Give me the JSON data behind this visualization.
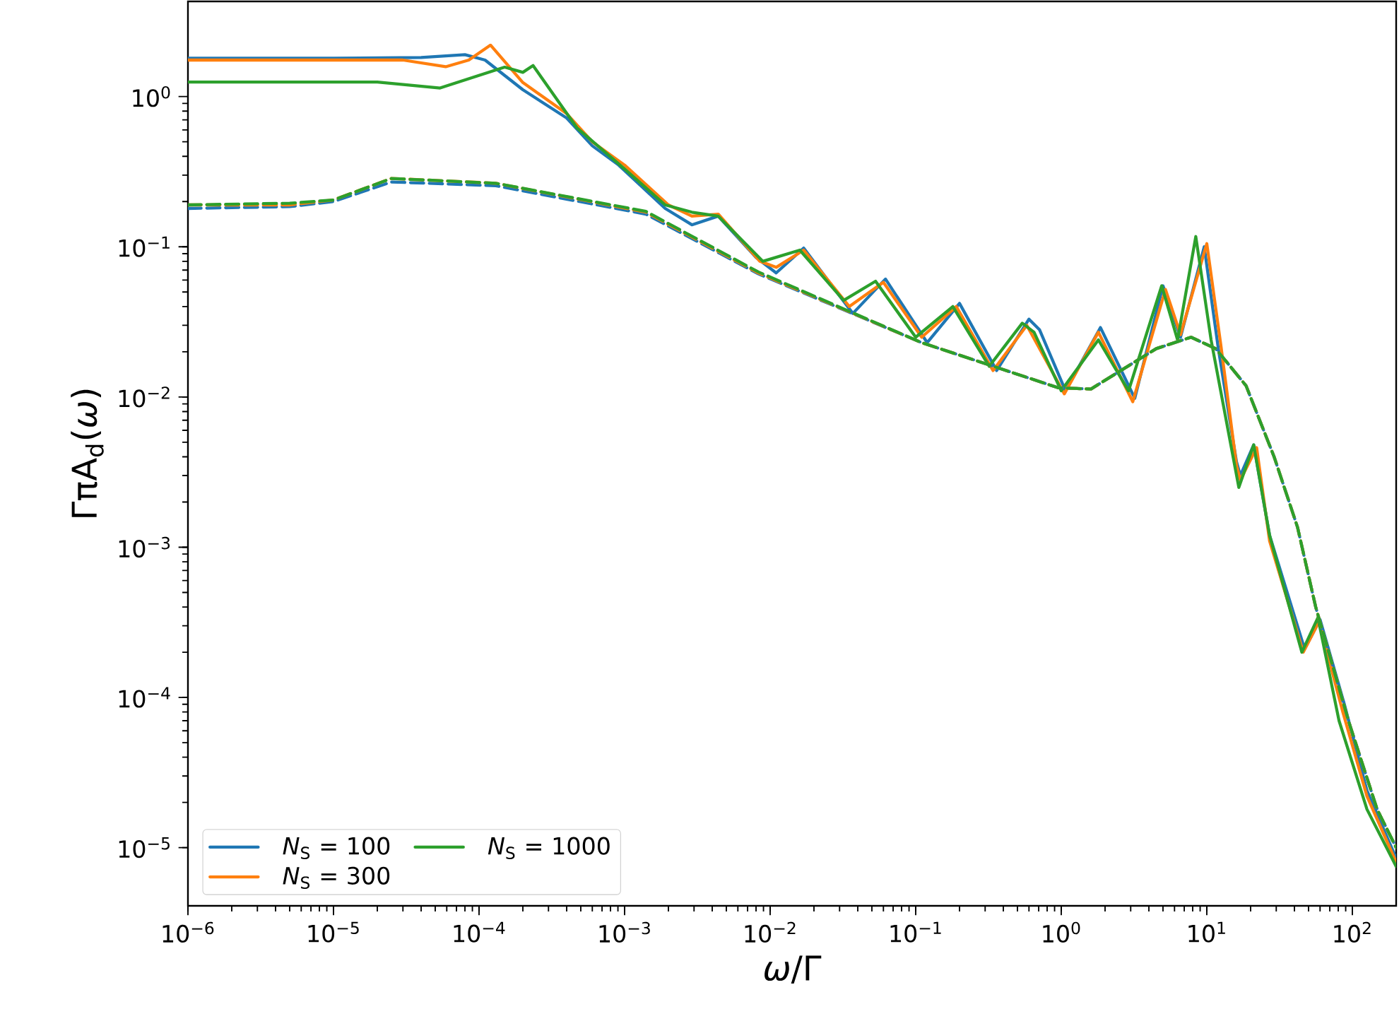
{
  "chart_data": {
    "type": "line",
    "xlabel": "*ω*/Γ",
    "ylabel": "ΓπA$_{d}$(*ω*)",
    "log": "xy",
    "legend": "bottom left",
    "xlim": [
      1e-06,
      200
    ],
    "ylim": [
      4.1e-06,
      4.3
    ],
    "xticks": [
      {
        "value": 1e-06,
        "label": "10$^{−6}$"
      },
      {
        "value": 1e-05,
        "label": "10$^{−5}$"
      },
      {
        "value": 0.0001,
        "label": "10$^{−4}$"
      },
      {
        "value": 0.001,
        "label": "10$^{−3}$"
      },
      {
        "value": 0.01,
        "label": "10$^{−2}$"
      },
      {
        "value": 0.1,
        "label": "10$^{−1}$"
      },
      {
        "value": 1,
        "label": "10$^{0}$"
      },
      {
        "value": 10,
        "label": "10$^{1}$"
      },
      {
        "value": 100,
        "label": "10$^{2}$"
      }
    ],
    "yticks": [
      {
        "value": 1e-05,
        "label": "10$^{−5}$"
      },
      {
        "value": 0.0001,
        "label": "10$^{−4}$"
      },
      {
        "value": 0.001,
        "label": "10$^{−3}$"
      },
      {
        "value": 0.01,
        "label": "10$^{−2}$"
      },
      {
        "value": 0.1,
        "label": "10$^{−1}$"
      },
      {
        "value": 1,
        "label": "10$^{0}$"
      }
    ],
    "series": [
      {
        "name": "*N*$_{S}$ = 100",
        "color": "#1f77b4",
        "line_style": "solid",
        "x": [
          1e-06,
          1e-05,
          4e-05,
          8e-05,
          0.00011,
          0.0002,
          0.0004,
          0.0006,
          0.00091,
          0.0019,
          0.0029,
          0.0044,
          0.008,
          0.011,
          0.017,
          0.037,
          0.062,
          0.12,
          0.2,
          0.36,
          0.6,
          0.71,
          1.07,
          1.86,
          3.2,
          5.0,
          6.6,
          9.6,
          12,
          16,
          17,
          21,
          27,
          47,
          60,
          89,
          126,
          200
        ],
        "values": [
          1.8,
          1.8,
          1.82,
          1.9,
          1.75,
          1.11,
          0.72,
          0.47,
          0.35,
          0.18,
          0.14,
          0.16,
          0.085,
          0.067,
          0.098,
          0.036,
          0.061,
          0.023,
          0.042,
          0.015,
          0.033,
          0.028,
          0.011,
          0.029,
          0.0098,
          0.055,
          0.025,
          0.1,
          0.021,
          0.0037,
          0.003,
          0.0048,
          0.0012,
          0.00021,
          0.00033,
          8.7e-05,
          2.4e-05,
          8.5e-06
        ]
      },
      {
        "name": "*N*$_{S}$ = 300",
        "color": "#ff7f0e",
        "line_style": "solid",
        "x": [
          1e-06,
          3e-05,
          5.9e-05,
          8.5e-05,
          0.00012,
          0.0002,
          0.0004,
          0.0006,
          0.001,
          0.002,
          0.0029,
          0.0044,
          0.0085,
          0.011,
          0.017,
          0.035,
          0.06,
          0.11,
          0.19,
          0.34,
          0.58,
          1.05,
          1.8,
          3.1,
          5.2,
          6.6,
          10,
          12.5,
          16,
          17,
          22,
          27,
          46,
          59,
          86,
          126,
          200
        ],
        "values": [
          1.75,
          1.75,
          1.58,
          1.75,
          2.2,
          1.24,
          0.77,
          0.5,
          0.35,
          0.19,
          0.16,
          0.165,
          0.08,
          0.073,
          0.095,
          0.04,
          0.058,
          0.025,
          0.04,
          0.015,
          0.03,
          0.0105,
          0.027,
          0.0093,
          0.052,
          0.026,
          0.105,
          0.022,
          0.0035,
          0.0028,
          0.0046,
          0.0011,
          0.0002,
          0.00032,
          8e-05,
          2.2e-05,
          8e-06
        ]
      },
      {
        "name": "*N*$_{S}$ = 1000",
        "color": "#2ca02c",
        "line_style": "solid",
        "x": [
          1e-06,
          2e-05,
          5.4e-05,
          0.00015,
          0.0002,
          0.000235,
          0.00047,
          0.001,
          0.0019,
          0.0029,
          0.0044,
          0.0089,
          0.016,
          0.032,
          0.053,
          0.1,
          0.18,
          0.32,
          0.54,
          0.65,
          1.0,
          1.8,
          2.9,
          4.9,
          6.3,
          8.4,
          10.7,
          16.6,
          21,
          27,
          45,
          58,
          81,
          126,
          200
        ],
        "values": [
          1.25,
          1.25,
          1.14,
          1.57,
          1.45,
          1.61,
          0.62,
          0.33,
          0.19,
          0.17,
          0.16,
          0.08,
          0.095,
          0.044,
          0.059,
          0.025,
          0.04,
          0.016,
          0.031,
          0.027,
          0.011,
          0.024,
          0.011,
          0.055,
          0.024,
          0.117,
          0.024,
          0.0025,
          0.0048,
          0.0012,
          0.0002,
          0.00034,
          7e-05,
          1.8e-05,
          7.5e-06
        ]
      },
      {
        "color": "#1f77b4",
        "line_style": "dashed",
        "x": [
          1e-06,
          5e-06,
          1e-05,
          2.5e-05,
          0.00013,
          0.0014,
          0.0083,
          0.11,
          0.96,
          1.6,
          4.5,
          7.8,
          11.5,
          18.6,
          29,
          42,
          56,
          94,
          148,
          200
        ],
        "values": [
          0.18,
          0.185,
          0.2,
          0.27,
          0.255,
          0.165,
          0.066,
          0.023,
          0.0115,
          0.0113,
          0.021,
          0.025,
          0.021,
          0.0119,
          0.004,
          0.00136,
          0.0004,
          7e-05,
          1.8e-05,
          1e-05
        ]
      },
      {
        "color": "#ff7f0e",
        "line_style": "dashed",
        "x": [
          1e-06,
          5e-06,
          1e-05,
          2.5e-05,
          0.00013,
          0.0014,
          0.0083,
          0.11,
          0.96,
          1.6,
          4.5,
          7.8,
          11.5,
          18.6,
          29,
          42,
          56,
          94,
          148,
          200
        ],
        "values": [
          0.19,
          0.19,
          0.205,
          0.285,
          0.265,
          0.17,
          0.067,
          0.023,
          0.0115,
          0.0113,
          0.021,
          0.025,
          0.021,
          0.0119,
          0.004,
          0.00136,
          0.0004,
          7e-05,
          1.8e-05,
          1e-05
        ]
      },
      {
        "color": "#2ca02c",
        "line_style": "dashed",
        "x": [
          1e-06,
          5e-06,
          1e-05,
          2.5e-05,
          0.00013,
          0.0014,
          0.0083,
          0.11,
          0.96,
          1.6,
          4.5,
          7.8,
          11.5,
          18.6,
          29,
          42,
          56,
          94,
          148,
          200
        ],
        "values": [
          0.19,
          0.195,
          0.205,
          0.285,
          0.265,
          0.172,
          0.068,
          0.023,
          0.0115,
          0.0113,
          0.021,
          0.025,
          0.021,
          0.0119,
          0.004,
          0.00136,
          0.0004,
          7e-05,
          1.8e-05,
          1e-05
        ]
      }
    ]
  }
}
